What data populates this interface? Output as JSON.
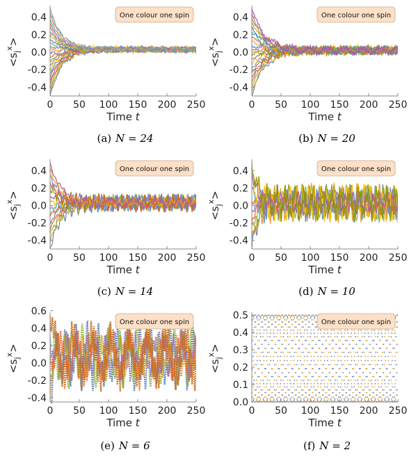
{
  "legend_label": "One colour one spin",
  "chart_data": [
    {
      "type": "line",
      "caption_label": "(a)",
      "caption_eq": "N = 24",
      "xlabel": "Time t",
      "ylabel": "<s_j^x>",
      "xlim": [
        0,
        250
      ],
      "ylim": [
        -0.5,
        0.5
      ],
      "xticks": [
        "0",
        "50",
        "100",
        "150",
        "200",
        "250"
      ],
      "yticks": [
        "-0.4",
        "-0.2",
        "0.0",
        "0.2",
        "0.4"
      ],
      "ytick_values": [
        -0.4,
        -0.2,
        0.0,
        0.2,
        0.4
      ],
      "series_count": 24,
      "initial_spread": 0.5,
      "final_mean": 0.03,
      "final_spread": 0.03,
      "decay_time": 20,
      "grid": false,
      "legend_position": "top-right"
    },
    {
      "type": "line",
      "caption_label": "(b)",
      "caption_eq": "N = 20",
      "xlabel": "Time t",
      "ylabel": "<s_j^x>",
      "xlim": [
        0,
        250
      ],
      "ylim": [
        -0.5,
        0.5
      ],
      "xticks": [
        "0",
        "50",
        "100",
        "150",
        "200",
        "250"
      ],
      "yticks": [
        "-0.4",
        "-0.2",
        "0.0",
        "0.2",
        "0.4"
      ],
      "ytick_values": [
        -0.4,
        -0.2,
        0.0,
        0.2,
        0.4
      ],
      "series_count": 20,
      "initial_spread": 0.5,
      "final_mean": 0.02,
      "final_spread": 0.04,
      "decay_time": 22,
      "grid": false,
      "legend_position": "top-right"
    },
    {
      "type": "line",
      "caption_label": "(c)",
      "caption_eq": "N = 14",
      "xlabel": "Time t",
      "ylabel": "<s_j^x>",
      "xlim": [
        0,
        250
      ],
      "ylim": [
        -0.5,
        0.5
      ],
      "xticks": [
        "0",
        "50",
        "100",
        "150",
        "200",
        "250"
      ],
      "yticks": [
        "-0.4",
        "-0.2",
        "0.0",
        "0.2",
        "0.4"
      ],
      "ytick_values": [
        -0.4,
        -0.2,
        0.0,
        0.2,
        0.4
      ],
      "series_count": 14,
      "initial_spread": 0.5,
      "final_mean": 0.03,
      "final_spread": 0.08,
      "decay_time": 18,
      "grid": false,
      "legend_position": "top-right"
    },
    {
      "type": "line",
      "caption_label": "(d)",
      "caption_eq": "N = 10",
      "xlabel": "Time t",
      "ylabel": "<s_j^x>",
      "xlim": [
        0,
        250
      ],
      "ylim": [
        -0.5,
        0.5
      ],
      "xticks": [
        "0",
        "50",
        "100",
        "150",
        "200",
        "250"
      ],
      "yticks": [
        "-0.4",
        "-0.2",
        "0.0",
        "0.2",
        "0.4"
      ],
      "ytick_values": [
        -0.4,
        -0.2,
        0.0,
        0.2,
        0.4
      ],
      "series_count": 10,
      "initial_spread": 0.5,
      "final_mean": 0.03,
      "final_spread": 0.17,
      "decay_time": 10,
      "grid": false,
      "legend_position": "top-right"
    },
    {
      "type": "line",
      "caption_label": "(e)",
      "caption_eq": "N = 6",
      "xlabel": "Time t",
      "ylabel": "<s_j^x>",
      "xlim": [
        0,
        250
      ],
      "ylim": [
        -0.45,
        0.55
      ],
      "xticks": [
        "0",
        "50",
        "100",
        "150",
        "200",
        "250"
      ],
      "yticks": [
        "-0.4",
        "-0.2",
        "0.0",
        "0.2",
        "0.4",
        "0.6"
      ],
      "ytick_values": [
        -0.4,
        -0.2,
        0.0,
        0.2,
        0.4,
        0.6
      ],
      "series_count": 6,
      "initial_spread": 0.5,
      "final_mean": 0.08,
      "final_spread": 0.3,
      "decay_time": 5,
      "grid": false,
      "legend_position": "top-right"
    },
    {
      "type": "scatter",
      "caption_label": "(f)",
      "caption_eq": "N = 2",
      "xlabel": "Time t",
      "ylabel": "<s_j^x>",
      "xlim": [
        0,
        250
      ],
      "ylim": [
        0,
        0.5
      ],
      "xticks": [
        "0",
        "50",
        "100",
        "150",
        "200",
        "250"
      ],
      "yticks": [
        "0.0",
        "0.1",
        "0.2",
        "0.3",
        "0.4",
        "0.5"
      ],
      "ytick_values": [
        0.0,
        0.1,
        0.2,
        0.3,
        0.4,
        0.5
      ],
      "series_count": 2,
      "oscillation": {
        "min": 0.0,
        "max": 0.5,
        "period": 3.3
      },
      "grid": false,
      "legend_position": "top-right"
    }
  ],
  "palette": [
    "#5e81b5",
    "#e19c24",
    "#8fb032",
    "#eb6235",
    "#8778b3",
    "#c56e1a",
    "#5d9ec7",
    "#ffbf00",
    "#a5609d",
    "#929600",
    "#e95536",
    "#6685d9",
    "#f89f13",
    "#bc5b80",
    "#47b66d",
    "#3b7dd1",
    "#d8a32e",
    "#6aa84f",
    "#e06666",
    "#9b59b6",
    "#45b7aa",
    "#f1c232",
    "#c27ba0",
    "#76a5af"
  ]
}
